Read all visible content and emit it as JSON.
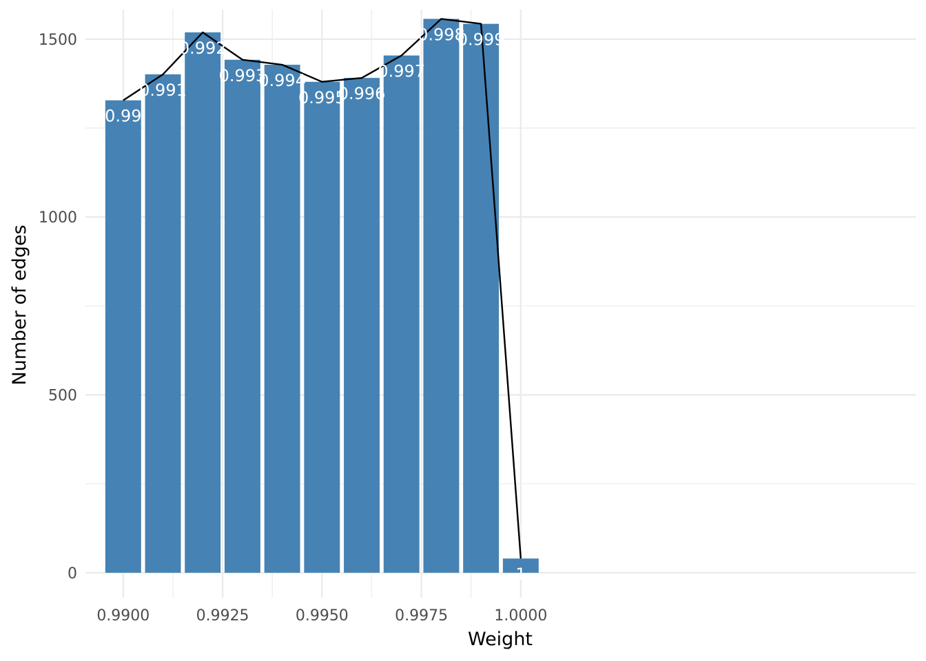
{
  "chart_data": {
    "type": "bar",
    "title": "",
    "xlabel": "Weight",
    "ylabel": "Number of edges",
    "xlim": [
      0.98905,
      1.00995
    ],
    "ylim": [
      -70,
      1610
    ],
    "x_ticks": [
      {
        "value": 0.99,
        "label": "0.9900"
      },
      {
        "value": 0.9925,
        "label": "0.9925"
      },
      {
        "value": 0.995,
        "label": "0.9950"
      },
      {
        "value": 0.9975,
        "label": "0.9975"
      },
      {
        "value": 1.0,
        "label": "1.0000"
      }
    ],
    "x_minor_ticks": [
      0.99125,
      0.99375,
      0.99625,
      0.99875
    ],
    "y_ticks": [
      {
        "value": 0,
        "label": "0"
      },
      {
        "value": 500,
        "label": "500"
      },
      {
        "value": 1000,
        "label": "1000"
      },
      {
        "value": 1500,
        "label": "1500"
      }
    ],
    "y_minor_ticks": [
      250,
      750,
      1250
    ],
    "grid": true,
    "bar_width": 0.0009,
    "bar_color": "#4682b4",
    "line_color": "#000000",
    "series": [
      {
        "x": [
          0.99,
          0.991,
          0.992,
          0.993,
          0.994,
          0.995,
          0.996,
          0.997,
          0.998,
          0.999,
          1.0
        ],
        "values": [
          1328,
          1401,
          1519,
          1442,
          1428,
          1380,
          1391,
          1454,
          1557,
          1543,
          40
        ],
        "labels": [
          "0.99",
          "0.991",
          "0.992",
          "0.993",
          "0.994",
          "0.995",
          "0.996",
          "0.997",
          "0.998",
          "0.999",
          "1"
        ]
      }
    ]
  }
}
